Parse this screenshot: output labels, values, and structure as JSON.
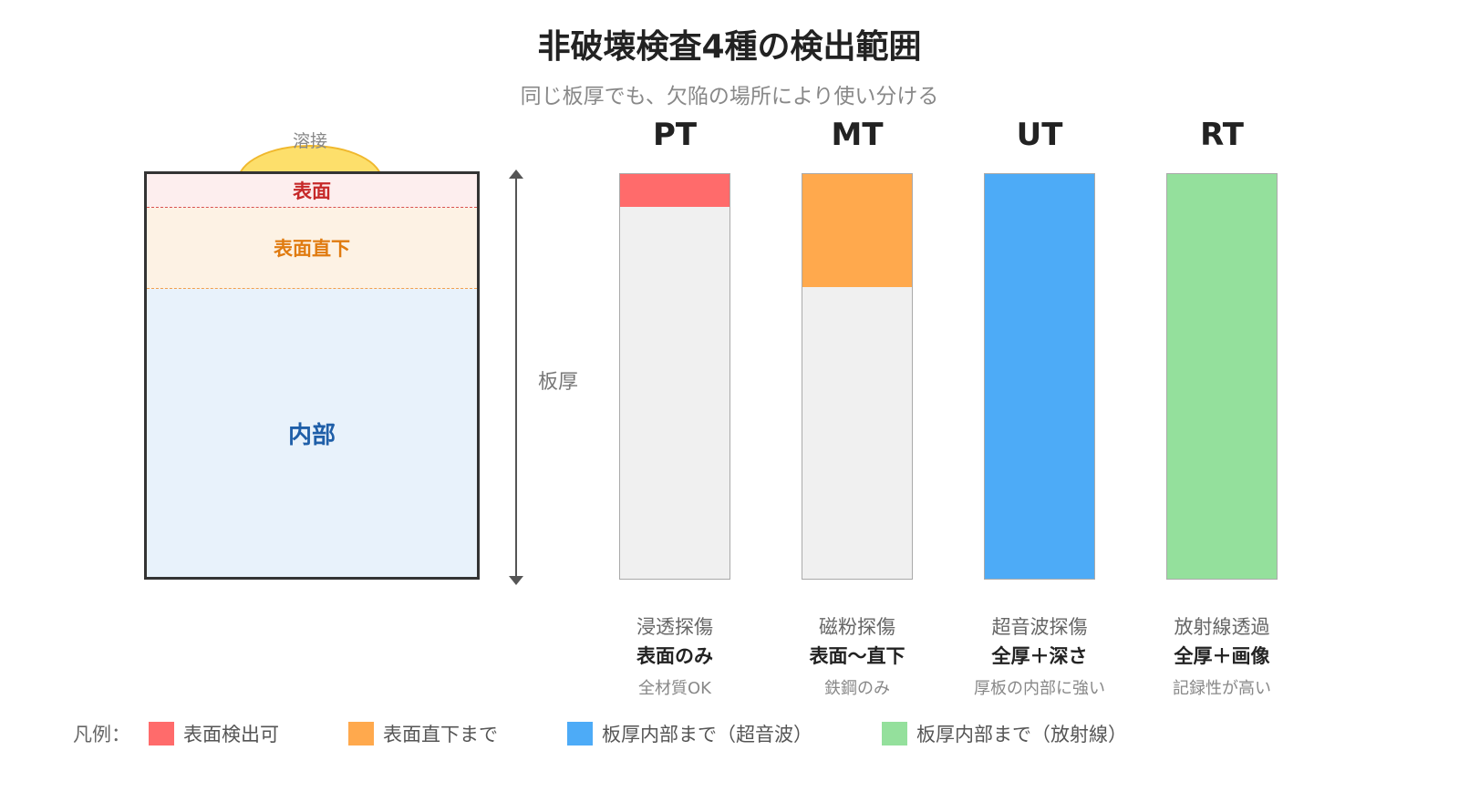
{
  "title": "非破壊検査4種の検出範囲",
  "subtitle": "同じ板厚でも、欠陥の場所により使い分ける",
  "cross_section": {
    "weld_label": "溶接",
    "zones": {
      "surface": "表面",
      "subsurface": "表面直下",
      "interior": "内部"
    },
    "thickness_label": "板厚"
  },
  "methods": [
    {
      "code": "PT",
      "name": "浸透探傷",
      "range": "表面のみ",
      "note": "全材質OK",
      "color": "#ff6b6b",
      "coverage_fraction": 0.08
    },
    {
      "code": "MT",
      "name": "磁粉探傷",
      "range": "表面〜直下",
      "note": "鉄鋼のみ",
      "color": "#ffa94d",
      "coverage_fraction": 0.28
    },
    {
      "code": "UT",
      "name": "超音波探傷",
      "range": "全厚＋深さ",
      "note": "厚板の内部に強い",
      "color": "#4dabf7",
      "coverage_fraction": 1.0
    },
    {
      "code": "RT",
      "name": "放射線透過",
      "range": "全厚＋画像",
      "note": "記録性が高い",
      "color": "#94e09c",
      "coverage_fraction": 1.0
    }
  ],
  "legend": {
    "title": "凡例：",
    "items": [
      {
        "label": "表面検出可",
        "color": "#ff6b6b"
      },
      {
        "label": "表面直下まで",
        "color": "#ffa94d"
      },
      {
        "label": "板厚内部まで（超音波）",
        "color": "#4dabf7"
      },
      {
        "label": "板厚内部まで（放射線）",
        "color": "#94e09c"
      }
    ]
  }
}
